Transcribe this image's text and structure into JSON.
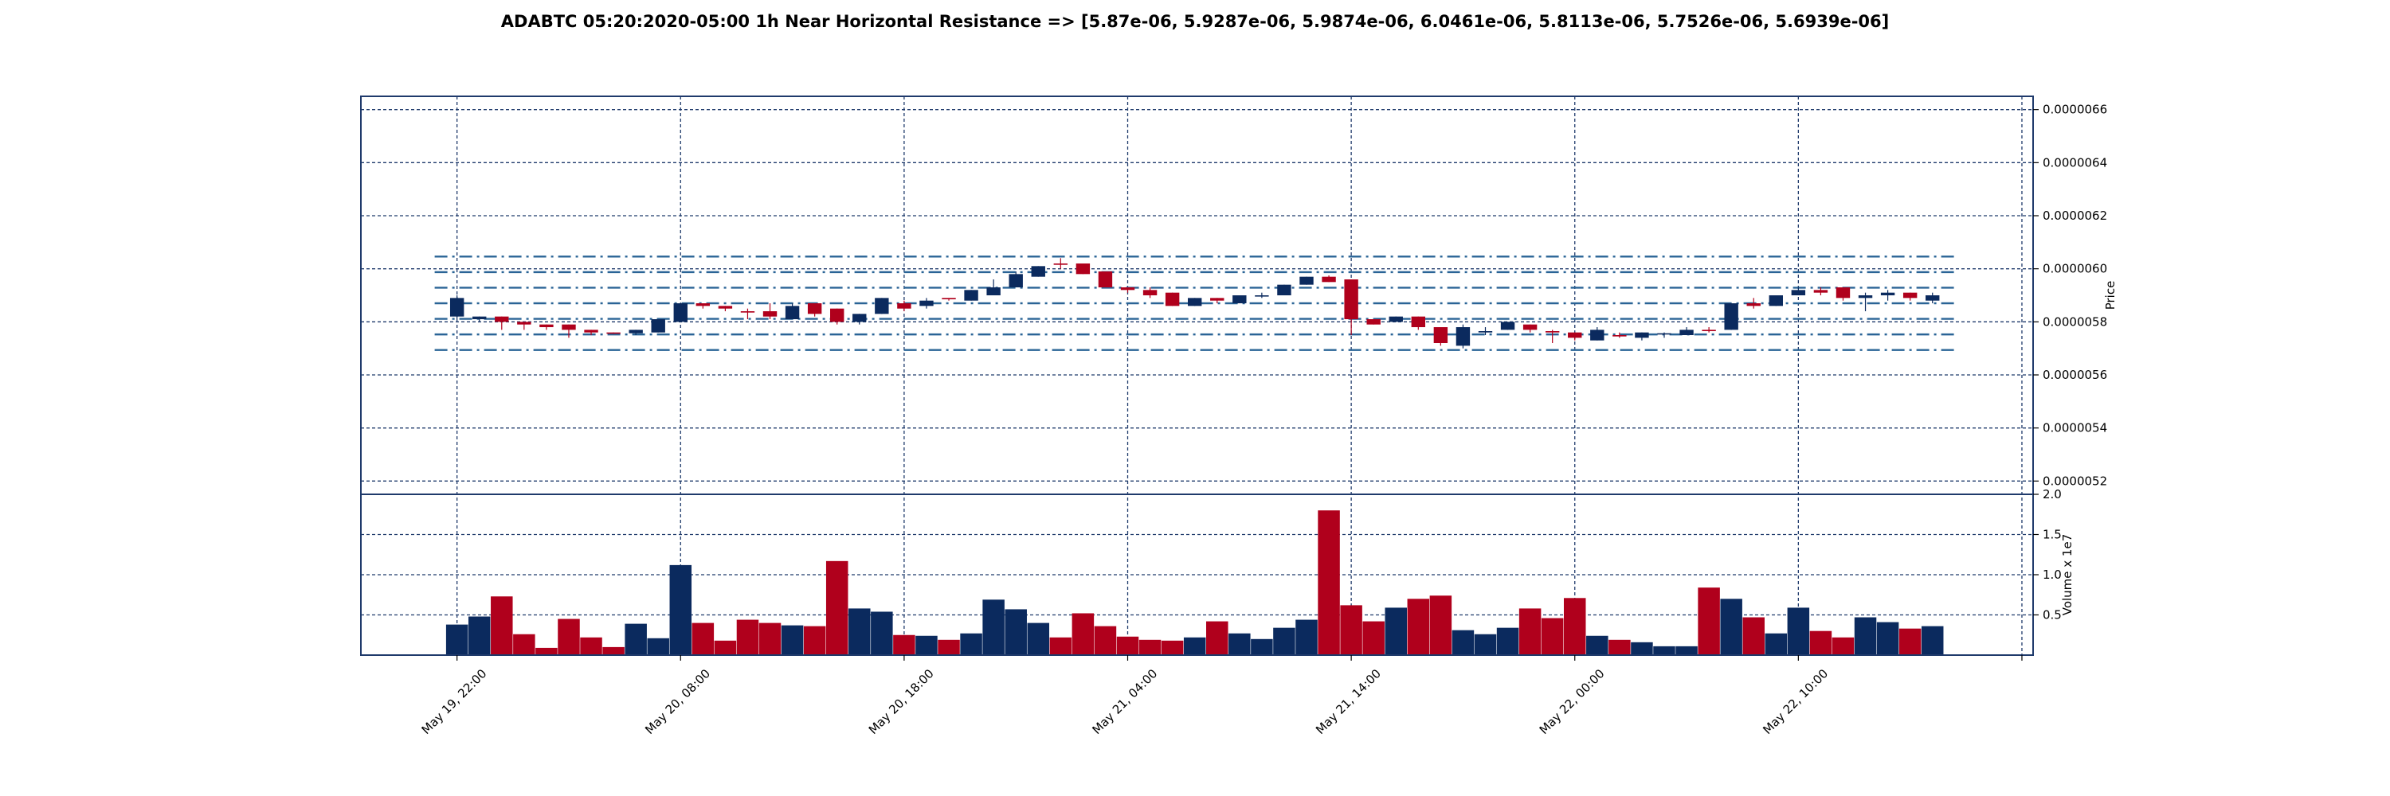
{
  "chart_data": {
    "type": "candlestick",
    "title": "ADABTC 05:20:2020-05:00 1h Near Horizontal Resistance => [5.87e-06, 5.9287e-06, 5.9874e-06, 6.0461e-06, 5.8113e-06, 5.7526e-06, 5.6939e-06]",
    "price_axis": {
      "label": "Price",
      "ylim": [
        5.15e-06,
        6.65e-06
      ],
      "ticks": [
        5.2e-06,
        5.4e-06,
        5.6e-06,
        5.8e-06,
        6e-06,
        6.2e-06,
        6.4e-06,
        6.6e-06
      ],
      "tick_labels": [
        "0.0000052",
        "0.0000054",
        "0.0000056",
        "0.0000058",
        "0.0000060",
        "0.0000062",
        "0.0000064",
        "0.0000066"
      ],
      "grid": true
    },
    "volume_axis": {
      "label": "Volume x 1e7",
      "ylim": [
        0,
        2.0
      ],
      "ticks": [
        0.5,
        1.0,
        1.5,
        2.0
      ],
      "tick_labels": [
        "0.5",
        "1.0",
        "1.5",
        "2.0"
      ],
      "grid": true
    },
    "x_axis": {
      "tick_labels": [
        "May 19, 22:00",
        "May 20, 08:00",
        "May 20, 18:00",
        "May 21, 04:00",
        "May 21, 14:00",
        "May 22, 00:00",
        "May 22, 10:00"
      ],
      "tick_positions": [
        0,
        10,
        20,
        30,
        40,
        50,
        60
      ],
      "tick_extra_positions": [
        70
      ],
      "xlim": [
        -4.3,
        70.5
      ]
    },
    "resistance_levels": [
      5.87e-06,
      5.9287e-06,
      5.9874e-06,
      6.0461e-06,
      5.8113e-06,
      5.7526e-06,
      5.6939e-06
    ],
    "colors": {
      "up": "#0b2a5e",
      "down": "#b0001c",
      "grid": "#1f3a6b",
      "resistance": "#2a6496"
    },
    "candles": [
      {
        "o": 5.82e-06,
        "h": 5.9e-06,
        "l": 5.81e-06,
        "c": 5.89e-06,
        "v": 0.38
      },
      {
        "o": 5.81e-06,
        "h": 5.82e-06,
        "l": 5.8e-06,
        "c": 5.82e-06,
        "v": 0.48
      },
      {
        "o": 5.82e-06,
        "h": 5.82e-06,
        "l": 5.77e-06,
        "c": 5.8e-06,
        "v": 0.73
      },
      {
        "o": 5.8e-06,
        "h": 5.8e-06,
        "l": 5.77e-06,
        "c": 5.79e-06,
        "v": 0.26
      },
      {
        "o": 5.79e-06,
        "h": 5.79e-06,
        "l": 5.77e-06,
        "c": 5.78e-06,
        "v": 0.09
      },
      {
        "o": 5.79e-06,
        "h": 5.79e-06,
        "l": 5.74e-06,
        "c": 5.77e-06,
        "v": 0.45
      },
      {
        "o": 5.77e-06,
        "h": 5.77e-06,
        "l": 5.75e-06,
        "c": 5.76e-06,
        "v": 0.22
      },
      {
        "o": 5.76e-06,
        "h": 5.76e-06,
        "l": 5.755e-06,
        "c": 5.757e-06,
        "v": 0.1
      },
      {
        "o": 5.757e-06,
        "h": 5.77e-06,
        "l": 5.75e-06,
        "c": 5.77e-06,
        "v": 0.39
      },
      {
        "o": 5.76e-06,
        "h": 5.81e-06,
        "l": 5.76e-06,
        "c": 5.81e-06,
        "v": 0.21
      },
      {
        "o": 5.8e-06,
        "h": 5.87e-06,
        "l": 5.8e-06,
        "c": 5.87e-06,
        "v": 1.12
      },
      {
        "o": 5.87e-06,
        "h": 5.87e-06,
        "l": 5.85e-06,
        "c": 5.86e-06,
        "v": 0.4
      },
      {
        "o": 5.86e-06,
        "h": 5.86e-06,
        "l": 5.84e-06,
        "c": 5.85e-06,
        "v": 0.18
      },
      {
        "o": 5.84e-06,
        "h": 5.85e-06,
        "l": 5.81e-06,
        "c": 5.835e-06,
        "v": 0.44
      },
      {
        "o": 5.84e-06,
        "h": 5.87e-06,
        "l": 5.81e-06,
        "c": 5.82e-06,
        "v": 0.4
      },
      {
        "o": 5.81e-06,
        "h": 5.87e-06,
        "l": 5.81e-06,
        "c": 5.86e-06,
        "v": 0.37
      },
      {
        "o": 5.87e-06,
        "h": 5.87e-06,
        "l": 5.82e-06,
        "c": 5.83e-06,
        "v": 0.36
      },
      {
        "o": 5.85e-06,
        "h": 5.85e-06,
        "l": 5.79e-06,
        "c": 5.8e-06,
        "v": 1.17
      },
      {
        "o": 5.8e-06,
        "h": 5.83e-06,
        "l": 5.79e-06,
        "c": 5.83e-06,
        "v": 0.58
      },
      {
        "o": 5.83e-06,
        "h": 5.89e-06,
        "l": 5.83e-06,
        "c": 5.89e-06,
        "v": 0.54
      },
      {
        "o": 5.87e-06,
        "h": 5.88e-06,
        "l": 5.84e-06,
        "c": 5.85e-06,
        "v": 0.25
      },
      {
        "o": 5.86e-06,
        "h": 5.89e-06,
        "l": 5.85e-06,
        "c": 5.88e-06,
        "v": 0.24
      },
      {
        "o": 5.89e-06,
        "h": 5.89e-06,
        "l": 5.88e-06,
        "c": 5.885e-06,
        "v": 0.19
      },
      {
        "o": 5.88e-06,
        "h": 5.92e-06,
        "l": 5.88e-06,
        "c": 5.92e-06,
        "v": 0.27
      },
      {
        "o": 5.9e-06,
        "h": 5.96e-06,
        "l": 5.9e-06,
        "c": 5.93e-06,
        "v": 0.69
      },
      {
        "o": 5.93e-06,
        "h": 5.99e-06,
        "l": 5.93e-06,
        "c": 5.98e-06,
        "v": 0.57
      },
      {
        "o": 5.97e-06,
        "h": 6.01e-06,
        "l": 5.97e-06,
        "c": 6.01e-06,
        "v": 0.4
      },
      {
        "o": 6.02e-06,
        "h": 6.04e-06,
        "l": 6e-06,
        "c": 6.015e-06,
        "v": 0.22
      },
      {
        "o": 6.02e-06,
        "h": 6.02e-06,
        "l": 5.98e-06,
        "c": 5.98e-06,
        "v": 0.52
      },
      {
        "o": 5.99e-06,
        "h": 5.99e-06,
        "l": 5.93e-06,
        "c": 5.93e-06,
        "v": 0.36
      },
      {
        "o": 5.93e-06,
        "h": 5.93e-06,
        "l": 5.91e-06,
        "c": 5.92e-06,
        "v": 0.23
      },
      {
        "o": 5.92e-06,
        "h": 5.93e-06,
        "l": 5.89e-06,
        "c": 5.9e-06,
        "v": 0.19
      },
      {
        "o": 5.91e-06,
        "h": 5.91e-06,
        "l": 5.86e-06,
        "c": 5.86e-06,
        "v": 0.18
      },
      {
        "o": 5.86e-06,
        "h": 5.89e-06,
        "l": 5.86e-06,
        "c": 5.89e-06,
        "v": 0.22
      },
      {
        "o": 5.89e-06,
        "h": 5.89e-06,
        "l": 5.87e-06,
        "c": 5.88e-06,
        "v": 0.42
      },
      {
        "o": 5.87e-06,
        "h": 5.9e-06,
        "l": 5.87e-06,
        "c": 5.9e-06,
        "v": 0.27
      },
      {
        "o": 5.9e-06,
        "h": 5.91e-06,
        "l": 5.89e-06,
        "c": 5.9e-06,
        "v": 0.2
      },
      {
        "o": 5.9e-06,
        "h": 5.94e-06,
        "l": 5.9e-06,
        "c": 5.94e-06,
        "v": 0.34
      },
      {
        "o": 5.94e-06,
        "h": 5.97e-06,
        "l": 5.94e-06,
        "c": 5.97e-06,
        "v": 0.44
      },
      {
        "o": 5.97e-06,
        "h": 5.975e-06,
        "l": 5.95e-06,
        "c": 5.95e-06,
        "v": 1.8
      },
      {
        "o": 5.96e-06,
        "h": 5.96e-06,
        "l": 5.75e-06,
        "c": 5.81e-06,
        "v": 0.62
      },
      {
        "o": 5.81e-06,
        "h": 5.81e-06,
        "l": 5.79e-06,
        "c": 5.79e-06,
        "v": 0.42
      },
      {
        "o": 5.8e-06,
        "h": 5.82e-06,
        "l": 5.8e-06,
        "c": 5.82e-06,
        "v": 0.59
      },
      {
        "o": 5.82e-06,
        "h": 5.82e-06,
        "l": 5.77e-06,
        "c": 5.78e-06,
        "v": 0.7
      },
      {
        "o": 5.78e-06,
        "h": 5.78e-06,
        "l": 5.71e-06,
        "c": 5.72e-06,
        "v": 0.74
      },
      {
        "o": 5.71e-06,
        "h": 5.79e-06,
        "l": 5.7e-06,
        "c": 5.78e-06,
        "v": 0.31
      },
      {
        "o": 5.76e-06,
        "h": 5.78e-06,
        "l": 5.75e-06,
        "c": 5.765e-06,
        "v": 0.26
      },
      {
        "o": 5.77e-06,
        "h": 5.8e-06,
        "l": 5.77e-06,
        "c": 5.8e-06,
        "v": 0.34
      },
      {
        "o": 5.79e-06,
        "h": 5.79e-06,
        "l": 5.76e-06,
        "c": 5.77e-06,
        "v": 0.58
      },
      {
        "o": 5.765e-06,
        "h": 5.77e-06,
        "l": 5.72e-06,
        "c": 5.76e-06,
        "v": 0.46
      },
      {
        "o": 5.76e-06,
        "h": 5.76e-06,
        "l": 5.73e-06,
        "c": 5.74e-06,
        "v": 0.71
      },
      {
        "o": 5.73e-06,
        "h": 5.78e-06,
        "l": 5.73e-06,
        "c": 5.77e-06,
        "v": 0.24
      },
      {
        "o": 5.75e-06,
        "h": 5.76e-06,
        "l": 5.74e-06,
        "c": 5.745e-06,
        "v": 0.19
      },
      {
        "o": 5.74e-06,
        "h": 5.76e-06,
        "l": 5.73e-06,
        "c": 5.76e-06,
        "v": 0.16
      },
      {
        "o": 5.755e-06,
        "h": 5.76e-06,
        "l": 5.74e-06,
        "c": 5.757e-06,
        "v": 0.11
      },
      {
        "o": 5.75e-06,
        "h": 5.78e-06,
        "l": 5.75e-06,
        "c": 5.77e-06,
        "v": 0.11
      },
      {
        "o": 5.77e-06,
        "h": 5.78e-06,
        "l": 5.76e-06,
        "c": 5.765e-06,
        "v": 0.84
      },
      {
        "o": 5.77e-06,
        "h": 5.87e-06,
        "l": 5.77e-06,
        "c": 5.87e-06,
        "v": 0.7
      },
      {
        "o": 5.87e-06,
        "h": 5.89e-06,
        "l": 5.85e-06,
        "c": 5.86e-06,
        "v": 0.47
      },
      {
        "o": 5.86e-06,
        "h": 5.9e-06,
        "l": 5.86e-06,
        "c": 5.9e-06,
        "v": 0.27
      },
      {
        "o": 5.9e-06,
        "h": 5.93e-06,
        "l": 5.9e-06,
        "c": 5.92e-06,
        "v": 0.59
      },
      {
        "o": 5.92e-06,
        "h": 5.93e-06,
        "l": 5.9e-06,
        "c": 5.91e-06,
        "v": 0.3
      },
      {
        "o": 5.93e-06,
        "h": 5.93e-06,
        "l": 5.88e-06,
        "c": 5.89e-06,
        "v": 0.22
      },
      {
        "o": 5.89e-06,
        "h": 5.91e-06,
        "l": 5.84e-06,
        "c": 5.9e-06,
        "v": 0.47
      },
      {
        "o": 5.9e-06,
        "h": 5.92e-06,
        "l": 5.88e-06,
        "c": 5.91e-06,
        "v": 0.41
      },
      {
        "o": 5.91e-06,
        "h": 5.91e-06,
        "l": 5.88e-06,
        "c": 5.89e-06,
        "v": 0.33
      },
      {
        "o": 5.88e-06,
        "h": 5.91e-06,
        "l": 5.87e-06,
        "c": 5.9e-06,
        "v": 0.36
      }
    ]
  }
}
